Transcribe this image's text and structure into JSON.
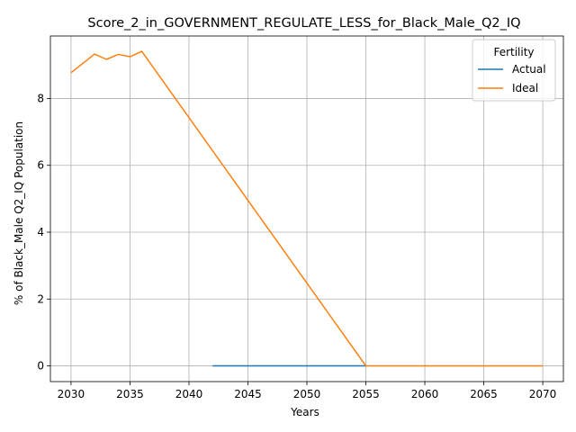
{
  "chart_data": {
    "type": "line",
    "title": "Score_2_in_GOVERNMENT_REGULATE_LESS_for_Black_Male_Q2_IQ",
    "xlabel": "Years",
    "ylabel": "% of Black_Male Q2_IQ Population",
    "xlim": [
      2028.25,
      2071.75
    ],
    "ylim": [
      -0.47,
      9.87
    ],
    "xticks": [
      2030,
      2035,
      2040,
      2045,
      2050,
      2055,
      2060,
      2065,
      2070
    ],
    "yticks": [
      0,
      2,
      4,
      6,
      8
    ],
    "grid": true,
    "legend": {
      "title": "Fertility",
      "placement": "top-right"
    },
    "series": [
      {
        "name": "Actual",
        "color": "#1f77b4",
        "x": [
          2042,
          2043,
          2044,
          2045,
          2046,
          2047,
          2048,
          2049,
          2050,
          2051,
          2052,
          2053,
          2054,
          2055
        ],
        "y": [
          0,
          0,
          0,
          0,
          0,
          0,
          0,
          0,
          0,
          0,
          0,
          0,
          0,
          0
        ]
      },
      {
        "name": "Ideal",
        "color": "#ff7f0e",
        "x": [
          2030,
          2031,
          2032,
          2033,
          2034,
          2035,
          2036,
          2055,
          2056,
          2057,
          2058,
          2059,
          2060,
          2061,
          2062,
          2063,
          2064,
          2065,
          2066,
          2067,
          2068,
          2069,
          2070
        ],
        "y": [
          8.77,
          9.05,
          9.33,
          9.17,
          9.32,
          9.25,
          9.41,
          0,
          0,
          0,
          0,
          0,
          0,
          0,
          0,
          0,
          0,
          0,
          0,
          0,
          0,
          0,
          0
        ]
      }
    ]
  }
}
